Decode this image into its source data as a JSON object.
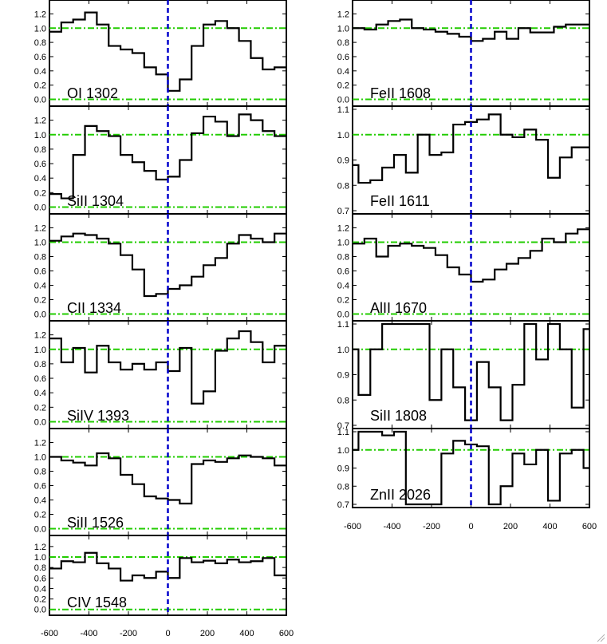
{
  "colors": {
    "spectrum": "#000000",
    "continuum": "#22cc00",
    "zero_velocity": "#0000cc",
    "axes": "#000000"
  },
  "chart_data": {
    "type": "line",
    "style": "step",
    "x_ticks": [
      "-600",
      "-400",
      "-200",
      "0",
      "200",
      "400",
      "600"
    ],
    "xlim": [
      -600,
      600
    ],
    "zero_velocity_line": 0,
    "continuum_level": 1.0,
    "panels": [
      {
        "label": "OI 1302",
        "column": "left",
        "ylim": [
          -0.05,
          1.35
        ],
        "y_ticks": [
          "0.0",
          "0.2",
          "0.4",
          "0.6",
          "0.8",
          "1.0",
          "1.2"
        ],
        "x": [
          -600,
          -540,
          -480,
          -420,
          -360,
          -300,
          -240,
          -180,
          -120,
          -60,
          0,
          60,
          120,
          180,
          240,
          300,
          360,
          420,
          480,
          540
        ],
        "values": [
          0.95,
          1.08,
          1.12,
          1.22,
          1.05,
          0.75,
          0.7,
          0.65,
          0.45,
          0.35,
          0.12,
          0.28,
          0.75,
          1.05,
          1.1,
          1.0,
          0.82,
          0.58,
          0.42,
          0.45
        ]
      },
      {
        "label": "SiII 1304",
        "column": "left",
        "ylim": [
          -0.05,
          1.35
        ],
        "y_ticks": [
          "0.0",
          "0.2",
          "0.4",
          "0.6",
          "0.8",
          "1.0",
          "1.2"
        ],
        "x": [
          -600,
          -540,
          -480,
          -420,
          -360,
          -300,
          -240,
          -180,
          -120,
          -60,
          0,
          60,
          120,
          180,
          240,
          300,
          360,
          420,
          480,
          540
        ],
        "values": [
          0.18,
          0.12,
          0.72,
          1.12,
          1.05,
          0.98,
          0.72,
          0.62,
          0.5,
          0.38,
          0.42,
          0.65,
          1.02,
          1.25,
          1.18,
          0.98,
          1.28,
          1.2,
          1.05,
          0.98
        ]
      },
      {
        "label": "CII 1334",
        "column": "left",
        "ylim": [
          -0.05,
          1.35
        ],
        "y_ticks": [
          "0.0",
          "0.2",
          "0.4",
          "0.6",
          "0.8",
          "1.0",
          "1.2"
        ],
        "x": [
          -600,
          -540,
          -480,
          -420,
          -360,
          -300,
          -240,
          -180,
          -120,
          -60,
          0,
          60,
          120,
          180,
          240,
          300,
          360,
          420,
          480,
          540
        ],
        "values": [
          1.02,
          1.08,
          1.12,
          1.1,
          1.05,
          0.98,
          0.82,
          0.62,
          0.25,
          0.28,
          0.35,
          0.4,
          0.52,
          0.68,
          0.78,
          0.98,
          1.1,
          1.05,
          1.0,
          1.12
        ]
      },
      {
        "label": "SiIV 1393",
        "column": "left",
        "ylim": [
          -0.05,
          1.35
        ],
        "y_ticks": [
          "0.0",
          "0.2",
          "0.4",
          "0.6",
          "0.8",
          "1.0",
          "1.2"
        ],
        "x": [
          -600,
          -540,
          -480,
          -420,
          -360,
          -300,
          -240,
          -180,
          -120,
          -60,
          0,
          60,
          120,
          180,
          240,
          300,
          360,
          420,
          480,
          540
        ],
        "values": [
          1.15,
          0.82,
          1.02,
          0.68,
          1.05,
          0.82,
          0.72,
          0.8,
          0.72,
          0.82,
          0.7,
          1.02,
          0.25,
          0.42,
          0.98,
          1.15,
          1.25,
          1.1,
          0.82,
          1.05
        ]
      },
      {
        "label": "SiII 1526",
        "column": "left",
        "ylim": [
          -0.05,
          1.35
        ],
        "y_ticks": [
          "0.0",
          "0.2",
          "0.4",
          "0.6",
          "0.8",
          "1.0",
          "1.2"
        ],
        "x": [
          -600,
          -540,
          -480,
          -420,
          -360,
          -300,
          -240,
          -180,
          -120,
          -60,
          0,
          60,
          120,
          180,
          240,
          300,
          360,
          420,
          480,
          540
        ],
        "values": [
          1.0,
          0.95,
          0.92,
          0.88,
          1.05,
          0.98,
          0.75,
          0.62,
          0.45,
          0.42,
          0.4,
          0.35,
          0.9,
          0.95,
          0.93,
          0.98,
          1.02,
          1.0,
          0.98,
          0.88
        ]
      },
      {
        "label": "CIV 1548",
        "column": "left",
        "ylim": [
          -0.05,
          1.35
        ],
        "y_ticks": [
          "0.0",
          "0.2",
          "0.4",
          "0.6",
          "0.8",
          "1.0",
          "1.2"
        ],
        "x": [
          -600,
          -540,
          -480,
          -420,
          -360,
          -300,
          -240,
          -180,
          -120,
          -60,
          0,
          60,
          120,
          180,
          240,
          300,
          360,
          420,
          480,
          540
        ],
        "values": [
          0.78,
          0.92,
          0.9,
          1.08,
          0.88,
          0.78,
          0.55,
          0.65,
          0.6,
          0.72,
          0.6,
          0.98,
          0.9,
          0.93,
          0.88,
          0.95,
          0.9,
          0.92,
          0.98,
          0.65
        ]
      },
      {
        "label": "FeII 1608",
        "column": "right",
        "ylim": [
          -0.05,
          1.35
        ],
        "y_ticks": [
          "0.0",
          "0.2",
          "0.4",
          "0.6",
          "0.8",
          "1.0",
          "1.2"
        ],
        "x": [
          -600,
          -540,
          -480,
          -420,
          -360,
          -300,
          -240,
          -180,
          -120,
          -60,
          0,
          60,
          120,
          180,
          240,
          300,
          360,
          420,
          480,
          540
        ],
        "values": [
          1.0,
          0.98,
          1.05,
          1.1,
          1.12,
          1.0,
          0.98,
          0.95,
          0.92,
          0.88,
          0.82,
          0.85,
          0.95,
          0.85,
          1.0,
          0.94,
          0.94,
          1.02,
          1.05,
          1.05
        ]
      },
      {
        "label": "FeII 1611",
        "column": "right",
        "ylim": [
          0.7,
          1.1
        ],
        "y_ticks": [
          "0.7",
          "0.8",
          "0.9",
          "1.0",
          "1.1"
        ],
        "x": [
          -600,
          -570,
          -510,
          -450,
          -390,
          -330,
          -270,
          -210,
          -150,
          -90,
          -30,
          30,
          90,
          150,
          210,
          270,
          330,
          390,
          450,
          510,
          570
        ],
        "values": [
          0.88,
          0.81,
          0.82,
          0.87,
          0.92,
          0.85,
          1.0,
          0.92,
          0.93,
          1.04,
          1.05,
          1.06,
          1.08,
          1.0,
          0.99,
          1.02,
          0.98,
          0.83,
          0.91,
          0.95,
          0.95
        ]
      },
      {
        "label": "AlII 1670",
        "column": "right",
        "ylim": [
          -0.05,
          1.35
        ],
        "y_ticks": [
          "0.0",
          "0.2",
          "0.4",
          "0.6",
          "0.8",
          "1.0",
          "1.2"
        ],
        "x": [
          -600,
          -540,
          -480,
          -420,
          -360,
          -300,
          -240,
          -180,
          -120,
          -60,
          0,
          60,
          120,
          180,
          240,
          300,
          360,
          420,
          480,
          540
        ],
        "values": [
          0.98,
          1.05,
          0.8,
          0.95,
          0.98,
          0.95,
          0.92,
          0.82,
          0.65,
          0.55,
          0.45,
          0.48,
          0.62,
          0.7,
          0.78,
          0.88,
          1.05,
          1.0,
          1.12,
          1.18
        ]
      },
      {
        "label": "SiII 1808",
        "column": "right",
        "ylim": [
          0.7,
          1.1
        ],
        "y_ticks": [
          "0.7",
          "0.8",
          "0.9",
          "1.0",
          "1.1"
        ],
        "x": [
          -600,
          -570,
          -510,
          -450,
          -390,
          -330,
          -270,
          -210,
          -150,
          -90,
          -30,
          30,
          90,
          150,
          210,
          270,
          330,
          390,
          450,
          510,
          570
        ],
        "values": [
          1.0,
          0.82,
          1.0,
          1.15,
          1.15,
          1.15,
          1.15,
          0.8,
          1.0,
          0.85,
          0.72,
          0.95,
          0.85,
          0.72,
          0.86,
          1.15,
          0.96,
          1.15,
          1.0,
          0.77,
          1.08
        ]
      },
      {
        "label": "ZnII 2026",
        "column": "right",
        "ylim": [
          0.7,
          1.1
        ],
        "y_ticks": [
          "0.7",
          "0.8",
          "0.9",
          "1.0",
          "1.1"
        ],
        "x": [
          -600,
          -570,
          -510,
          -450,
          -390,
          -330,
          -270,
          -210,
          -150,
          -90,
          -30,
          30,
          90,
          150,
          210,
          270,
          330,
          390,
          450,
          510,
          570
        ],
        "values": [
          1.0,
          1.15,
          1.15,
          1.08,
          1.1,
          0.65,
          0.65,
          0.65,
          0.98,
          1.05,
          1.03,
          1.02,
          0.65,
          0.8,
          0.98,
          0.92,
          1.0,
          0.72,
          0.98,
          1.0,
          0.9
        ]
      }
    ]
  }
}
